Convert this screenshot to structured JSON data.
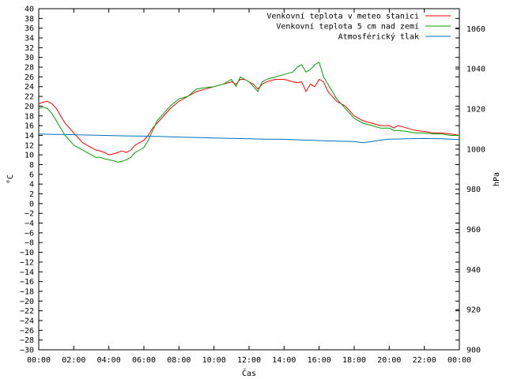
{
  "chart_data": {
    "type": "line",
    "xlabel": "Čas",
    "ylabel": "°C",
    "y2label": "hPa",
    "ylim": [
      -30,
      40
    ],
    "y2lim": [
      900,
      1070
    ],
    "xlim": [
      "00:00",
      "24:00"
    ],
    "x_ticks": [
      "00:00",
      "02:00",
      "04:00",
      "06:00",
      "08:00",
      "10:00",
      "12:00",
      "14:00",
      "16:00",
      "18:00",
      "20:00",
      "22:00",
      "00:00"
    ],
    "y_ticks": [
      40,
      38,
      36,
      34,
      32,
      30,
      28,
      26,
      24,
      22,
      20,
      18,
      16,
      14,
      12,
      10,
      8,
      6,
      4,
      2,
      0,
      -2,
      -4,
      -6,
      -8,
      -10,
      -12,
      -14,
      -16,
      -18,
      -20,
      -22,
      -24,
      -26,
      -28,
      -30
    ],
    "y2_ticks": [
      1060,
      1040,
      1020,
      1000,
      980,
      960,
      940,
      920,
      900
    ],
    "grid": false,
    "legend_position": "top-right",
    "series": [
      {
        "name": "Venkovní teplota v meteo stanici",
        "axis": "left",
        "color": "#ff0000",
        "x": [
          0,
          0.25,
          0.5,
          0.75,
          1,
          1.25,
          1.5,
          1.75,
          2,
          2.25,
          2.5,
          2.75,
          3,
          3.25,
          3.5,
          3.75,
          4,
          4.25,
          4.5,
          4.75,
          5,
          5.25,
          5.5,
          5.75,
          6,
          6.25,
          6.5,
          6.75,
          7,
          7.5,
          8,
          8.5,
          9,
          9.5,
          10,
          10.5,
          11,
          11.25,
          11.5,
          11.75,
          12,
          12.25,
          12.5,
          12.75,
          13,
          13.5,
          14,
          14.5,
          14.75,
          15,
          15.25,
          15.5,
          15.75,
          16,
          16.25,
          16.5,
          17,
          17.5,
          18,
          18.5,
          19,
          19.5,
          20,
          20.25,
          20.5,
          21,
          21.5,
          22,
          22.5,
          23,
          23.5,
          24
        ],
        "y": [
          20.5,
          20.8,
          21.0,
          20.5,
          19.5,
          18.0,
          16.5,
          15.5,
          14.5,
          13.5,
          12.5,
          12.0,
          11.5,
          11.0,
          10.8,
          10.5,
          10.0,
          10.2,
          10.5,
          10.8,
          10.5,
          11.0,
          12.0,
          12.5,
          13.0,
          14.0,
          15.5,
          16.5,
          17.5,
          19.5,
          21.0,
          22.0,
          23.0,
          23.5,
          24.0,
          24.5,
          25.0,
          24.5,
          25.5,
          25.5,
          25.0,
          24.5,
          23.5,
          24.5,
          25.0,
          25.5,
          25.5,
          25.0,
          24.8,
          25.0,
          23.0,
          24.5,
          24.0,
          25.5,
          25.0,
          23.0,
          21.0,
          20.0,
          18.0,
          17.0,
          16.5,
          16.0,
          16.0,
          15.5,
          16.0,
          15.5,
          15.0,
          14.8,
          14.5,
          14.5,
          14.3,
          14.0
        ]
      },
      {
        "name": "Venkovní teplota 5 cm nad zemí",
        "axis": "left",
        "color": "#00a000",
        "x": [
          0,
          0.25,
          0.5,
          0.75,
          1,
          1.25,
          1.5,
          1.75,
          2,
          2.25,
          2.5,
          2.75,
          3,
          3.25,
          3.5,
          3.75,
          4,
          4.25,
          4.5,
          4.75,
          5,
          5.25,
          5.5,
          5.75,
          6,
          6.25,
          6.5,
          6.75,
          7,
          7.5,
          8,
          8.5,
          9,
          9.5,
          10,
          10.5,
          11,
          11.25,
          11.5,
          11.75,
          12,
          12.25,
          12.5,
          12.75,
          13,
          13.5,
          14,
          14.5,
          14.75,
          15,
          15.25,
          15.5,
          15.75,
          16,
          16.25,
          16.5,
          17,
          17.5,
          18,
          18.5,
          19,
          19.5,
          20,
          20.25,
          20.5,
          21,
          21.5,
          22,
          22.5,
          23,
          23.5,
          24
        ],
        "y": [
          19.5,
          19.8,
          19.5,
          18.5,
          17.0,
          15.5,
          14.0,
          13.0,
          12.0,
          11.5,
          11.0,
          10.5,
          10.0,
          9.5,
          9.5,
          9.2,
          9.0,
          8.8,
          8.5,
          8.7,
          9.0,
          9.5,
          10.5,
          11.0,
          11.5,
          13.0,
          15.0,
          17.0,
          18.0,
          20.0,
          21.5,
          22.0,
          23.5,
          23.8,
          24.0,
          24.5,
          25.5,
          24.0,
          26.0,
          25.5,
          25.0,
          24.0,
          23.0,
          25.0,
          25.5,
          26.0,
          26.5,
          27.0,
          28.0,
          28.5,
          27.0,
          27.5,
          28.5,
          29.0,
          26.0,
          24.5,
          21.5,
          19.5,
          17.5,
          16.5,
          16.0,
          15.5,
          15.5,
          15.0,
          15.0,
          14.8,
          14.5,
          14.5,
          14.3,
          14.3,
          14.0,
          14.0
        ]
      },
      {
        "name": "Atmosférický tlak",
        "axis": "right",
        "color": "#0070c0",
        "x": [
          0,
          1,
          2,
          3,
          4,
          5,
          6,
          7,
          8,
          9,
          10,
          11,
          12,
          13,
          14,
          15,
          16,
          17,
          18,
          18.5,
          19,
          19.5,
          20,
          21,
          22,
          23,
          23.5,
          24
        ],
        "y": [
          1007.5,
          1007.3,
          1007.2,
          1007.0,
          1006.8,
          1006.6,
          1006.5,
          1006.3,
          1006.0,
          1005.8,
          1005.6,
          1005.4,
          1005.2,
          1005.0,
          1004.9,
          1004.6,
          1004.3,
          1004.0,
          1003.8,
          1003.2,
          1003.8,
          1004.5,
          1005.0,
          1005.2,
          1005.3,
          1005.2,
          1005.0,
          1004.8
        ]
      }
    ]
  }
}
